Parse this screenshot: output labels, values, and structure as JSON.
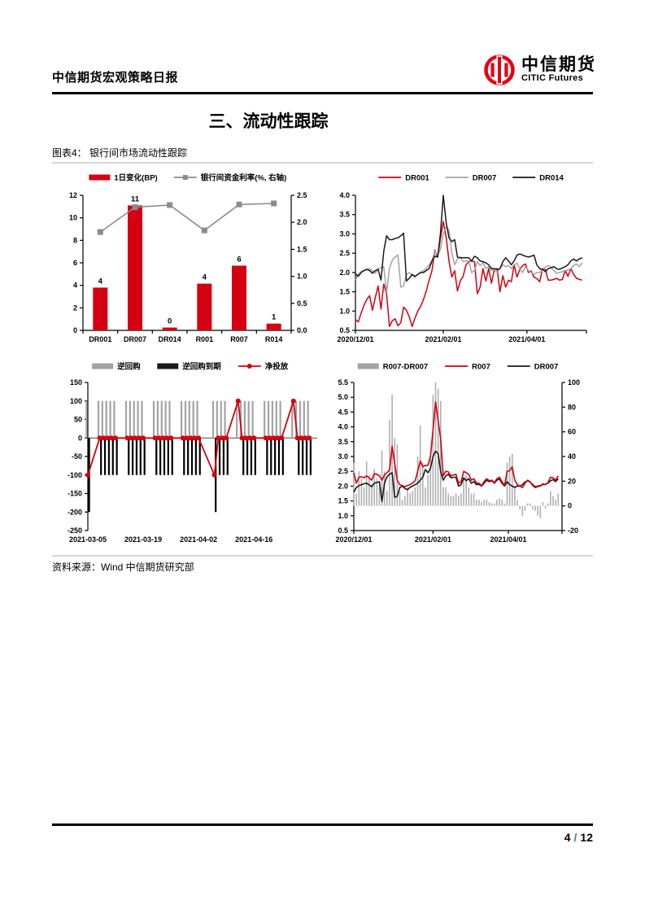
{
  "page": {
    "header_title": "中信期货宏观策略日报",
    "logo_cn": "中信期货",
    "logo_en": "CITIC Futures",
    "section_title": "三、流动性跟踪",
    "figure_caption": "图表4： 银行间市场流动性跟踪",
    "source": "资料来源：Wind 中信期货研究部",
    "page_number": "4",
    "page_separator": "/",
    "page_total": "12"
  },
  "colors": {
    "red": "#d40011",
    "gray": "#a3a3a3",
    "line_gray": "#8c8c8c",
    "bar_gray": "#b0b0b0",
    "black": "#1a1a1a",
    "rule_gray": "#d6d6d6",
    "slash_blue": "#4472c4",
    "logo_red": "#e60012",
    "zero_line": "#4d4d4d"
  },
  "chart_data": [
    {
      "id": "interbank-rate-daily-change",
      "type": "bar",
      "legend": [
        {
          "label": "1日变化(BP)",
          "swatch": "bar",
          "color": "red"
        },
        {
          "label": "银行间资金利率(%, 右轴)",
          "swatch": "line-square",
          "color": "line_gray"
        }
      ],
      "categories": [
        "DR001",
        "DR007",
        "DR014",
        "R001",
        "R007",
        "R014"
      ],
      "bars": {
        "name": "1日变化(BP)",
        "axis": "left",
        "values": [
          3.8,
          11.1,
          0.25,
          4.15,
          5.75,
          0.6
        ],
        "labels": [
          "4",
          "11",
          "0",
          "4",
          "6",
          "1"
        ]
      },
      "line": {
        "name": "银行间资金利率(%, 右轴)",
        "axis": "right",
        "color": "line_gray",
        "values": [
          1.82,
          2.28,
          2.32,
          1.85,
          2.33,
          2.35
        ]
      },
      "left_axis": {
        "min": 0,
        "max": 12,
        "step": 2,
        "decimals": 0
      },
      "right_axis": {
        "min": 0,
        "max": 2.5,
        "step": 0.5,
        "decimals": 1
      }
    },
    {
      "id": "dr-rates-history",
      "type": "line",
      "legend": [
        {
          "label": "DR001",
          "swatch": "line",
          "color": "red"
        },
        {
          "label": "DR007",
          "swatch": "line",
          "color": "gray"
        },
        {
          "label": "DR014",
          "swatch": "line",
          "color": "black"
        }
      ],
      "x": {
        "start": 0,
        "step": 2,
        "count": 81
      },
      "x_domain": [
        0,
        163
      ],
      "x_ticks": [
        {
          "pos": 0,
          "label": "2020/12/01"
        },
        {
          "pos": 62,
          "label": "2021/02/01"
        },
        {
          "pos": 121,
          "label": "2021/04/01"
        }
      ],
      "y_axis": {
        "min": 0.5,
        "max": 4.0,
        "step": 0.5,
        "decimals": 1
      },
      "series": [
        {
          "name": "DR001",
          "color": "red",
          "values": [
            0.78,
            0.72,
            0.95,
            1.15,
            1.3,
            1.4,
            1.02,
            1.35,
            1.65,
            1.05,
            1.7,
            1.45,
            0.6,
            0.75,
            0.8,
            0.62,
            0.7,
            1.1,
            1.02,
            0.85,
            0.6,
            0.82,
            1.0,
            1.12,
            1.3,
            1.52,
            1.8,
            2.05,
            2.58,
            2.4,
            2.88,
            3.32,
            2.92,
            2.3,
            1.88,
            2.05,
            1.52,
            1.78,
            1.9,
            2.2,
            2.28,
            2.3,
            2.28,
            1.45,
            1.62,
            2.1,
            1.78,
            2.1,
            1.72,
            2.08,
            2.1,
            1.5,
            1.92,
            1.62,
            1.8,
            1.76,
            2.2,
            1.88,
            2.08,
            2.18,
            2.22,
            2.0,
            2.04,
            1.88,
            1.84,
            1.76,
            2.1,
            2.08,
            1.8,
            1.8,
            1.82,
            1.85,
            1.8,
            1.82,
            2.05,
            1.9,
            2.1,
            1.95,
            1.85,
            1.82,
            1.8
          ]
        },
        {
          "name": "DR007",
          "color": "gray",
          "values": [
            1.8,
            1.95,
            2.02,
            2.05,
            2.08,
            2.1,
            2.04,
            1.98,
            2.1,
            2.12,
            2.15,
            1.48,
            2.1,
            2.32,
            2.4,
            2.45,
            1.62,
            1.66,
            1.95,
            2.0,
            1.92,
            1.88,
            1.96,
            2.0,
            2.05,
            2.1,
            2.2,
            2.3,
            2.56,
            2.45,
            2.6,
            3.0,
            3.18,
            3.1,
            2.5,
            2.2,
            2.35,
            2.4,
            2.28,
            2.3,
            2.3,
            2.0,
            2.05,
            2.28,
            2.18,
            2.25,
            2.1,
            2.15,
            2.05,
            2.06,
            2.0,
            2.1,
            2.2,
            2.15,
            2.18,
            2.1,
            2.2,
            2.24,
            2.1,
            2.0,
            2.15,
            2.05,
            2.0,
            1.96,
            2.0,
            2.0,
            2.05,
            2.14,
            2.18,
            2.14,
            2.05,
            1.98,
            2.0,
            2.02,
            2.05,
            2.06,
            2.1,
            2.18,
            2.22,
            2.15,
            2.25
          ]
        },
        {
          "name": "DR014",
          "color": "black",
          "values": [
            1.97,
            1.9,
            2.0,
            2.05,
            2.08,
            2.05,
            1.98,
            2.05,
            2.08,
            1.8,
            2.55,
            2.95,
            2.85,
            2.85,
            2.88,
            2.9,
            2.95,
            3.02,
            1.78,
            1.85,
            1.95,
            1.9,
            1.95,
            2.0,
            2.0,
            2.05,
            2.1,
            2.3,
            2.42,
            2.4,
            3.0,
            4.0,
            3.3,
            2.9,
            2.8,
            2.85,
            2.4,
            2.38,
            2.38,
            2.38,
            2.38,
            2.3,
            2.42,
            2.38,
            2.3,
            2.28,
            2.25,
            2.2,
            2.1,
            2.1,
            2.08,
            2.1,
            2.28,
            2.38,
            2.3,
            2.2,
            2.3,
            2.45,
            2.48,
            2.45,
            2.42,
            2.4,
            2.42,
            2.45,
            2.2,
            2.1,
            2.08,
            2.02,
            2.1,
            2.12,
            2.15,
            2.1,
            2.08,
            2.12,
            2.15,
            2.2,
            2.3,
            2.35,
            2.3,
            2.35,
            2.38
          ]
        }
      ]
    },
    {
      "id": "open-market-operations",
      "type": "bar-daily",
      "legend": [
        {
          "label": "逆回购",
          "swatch": "bar",
          "color": "gray"
        },
        {
          "label": "逆回购到期",
          "swatch": "bar",
          "color": "black"
        },
        {
          "label": "净投放",
          "swatch": "line-dot",
          "color": "red"
        }
      ],
      "y_axis": {
        "min": -250,
        "max": 150,
        "step": 50,
        "decimals": 0
      },
      "x_domain": [
        0,
        58
      ],
      "x_ticks": [
        {
          "pos": 0,
          "label": "2021-03-05"
        },
        {
          "pos": 14,
          "label": "2021-03-19"
        },
        {
          "pos": 28,
          "label": "2021-04-02"
        },
        {
          "pos": 42,
          "label": "2021-04-16"
        }
      ],
      "days": [
        0,
        3,
        4,
        5,
        6,
        7,
        10,
        11,
        12,
        13,
        14,
        17,
        18,
        19,
        20,
        21,
        24,
        25,
        26,
        27,
        28,
        32,
        33,
        34,
        35,
        38,
        39,
        40,
        41,
        42,
        45,
        46,
        47,
        48,
        49,
        52,
        53,
        54,
        55,
        56
      ],
      "reverse_repo": [
        100,
        100,
        100,
        100,
        100,
        100,
        100,
        100,
        100,
        100,
        100,
        100,
        100,
        100,
        100,
        100,
        100,
        100,
        100,
        100,
        100,
        100,
        100,
        100,
        100,
        100,
        100,
        100,
        100,
        100,
        100,
        100,
        100,
        100,
        100,
        100,
        100,
        100,
        100,
        100
      ],
      "repo_maturity": [
        -200,
        -100,
        -100,
        -100,
        -100,
        -100,
        -100,
        -100,
        -100,
        -100,
        -100,
        -100,
        -100,
        -100,
        -100,
        -100,
        -100,
        -100,
        -100,
        -100,
        -100,
        -200,
        -100,
        -100,
        -100,
        0,
        -100,
        -100,
        -100,
        -100,
        -100,
        -100,
        -100,
        -100,
        -100,
        0,
        -100,
        -100,
        -100,
        -100
      ],
      "net_injection": [
        -100,
        0,
        0,
        0,
        0,
        0,
        0,
        0,
        0,
        0,
        0,
        0,
        0,
        0,
        0,
        0,
        0,
        0,
        0,
        0,
        0,
        -100,
        0,
        0,
        0,
        100,
        0,
        0,
        0,
        0,
        0,
        0,
        0,
        0,
        0,
        100,
        0,
        0,
        0,
        0
      ]
    },
    {
      "id": "r007-dr007-spread",
      "type": "line-bar",
      "legend": [
        {
          "label": "R007-DR007",
          "swatch": "bar",
          "color": "gray"
        },
        {
          "label": "R007",
          "swatch": "line",
          "color": "red"
        },
        {
          "label": "DR007",
          "swatch": "line",
          "color": "black"
        }
      ],
      "x": {
        "start": 0,
        "step": 2,
        "count": 81
      },
      "x_domain": [
        0,
        163
      ],
      "x_ticks": [
        {
          "pos": 0,
          "label": "2020/12/01"
        },
        {
          "pos": 62,
          "label": "2021/02/01"
        },
        {
          "pos": 121,
          "label": "2021/04/01"
        }
      ],
      "left_axis": {
        "min": 0.5,
        "max": 5.5,
        "step": 0.5,
        "decimals": 1
      },
      "right_axis": {
        "min": -20,
        "max": 100,
        "step": 20,
        "decimals": 0
      },
      "bars": {
        "name": "R007-DR007",
        "axis": "right",
        "color": "bar_gray",
        "values": [
          35,
          10,
          28,
          22,
          15,
          36,
          25,
          18,
          30,
          22,
          15,
          45,
          28,
          12,
          70,
          90,
          55,
          50,
          12,
          5,
          8,
          15,
          10,
          12,
          15,
          40,
          65,
          35,
          15,
          25,
          40,
          90,
          100,
          95,
          85,
          15,
          15,
          10,
          8,
          8,
          10,
          8,
          10,
          22,
          25,
          15,
          10,
          10,
          5,
          5,
          3,
          5,
          5,
          3,
          2,
          2,
          5,
          6,
          5,
          2,
          35,
          40,
          42,
          15,
          5,
          -3,
          -8,
          -4,
          2,
          2,
          -3,
          -4,
          -8,
          -10,
          3,
          -2,
          2,
          12,
          8,
          5,
          10
        ]
      },
      "series": [
        {
          "name": "DR007",
          "color": "black",
          "axis": "left",
          "values": [
            1.8,
            1.95,
            2.02,
            2.05,
            2.08,
            2.1,
            2.04,
            1.98,
            2.1,
            2.12,
            2.15,
            1.48,
            2.1,
            2.32,
            2.4,
            2.45,
            1.62,
            1.66,
            1.95,
            2.0,
            1.92,
            1.88,
            1.96,
            2.0,
            2.05,
            2.1,
            2.2,
            2.3,
            2.56,
            2.45,
            2.6,
            3.0,
            3.18,
            3.1,
            2.5,
            2.2,
            2.35,
            2.4,
            2.28,
            2.3,
            2.3,
            2.0,
            2.05,
            2.28,
            2.18,
            2.25,
            2.1,
            2.15,
            2.05,
            2.06,
            2.0,
            2.1,
            2.2,
            2.15,
            2.18,
            2.1,
            2.2,
            2.24,
            2.1,
            2.0,
            2.15,
            2.05,
            2.0,
            1.96,
            2.0,
            2.0,
            2.05,
            2.14,
            2.18,
            2.14,
            2.05,
            1.98,
            2.0,
            2.02,
            2.05,
            2.06,
            2.1,
            2.18,
            2.22,
            2.15,
            2.25
          ]
        },
        {
          "name": "R007",
          "color": "red",
          "axis": "left",
          "values": [
            2.45,
            2.1,
            2.3,
            2.32,
            2.28,
            2.35,
            2.28,
            2.2,
            2.42,
            2.4,
            2.35,
            2.2,
            2.38,
            2.45,
            2.55,
            3.35,
            2.75,
            2.2,
            2.05,
            2.02,
            1.98,
            2.02,
            2.05,
            2.1,
            2.18,
            2.5,
            2.85,
            2.65,
            2.7,
            2.7,
            3.0,
            3.9,
            4.85,
            4.2,
            3.6,
            2.35,
            2.5,
            2.48,
            2.35,
            2.38,
            2.4,
            2.1,
            2.15,
            2.5,
            2.45,
            2.4,
            2.2,
            2.25,
            2.1,
            2.1,
            2.02,
            2.15,
            2.25,
            2.18,
            2.2,
            2.12,
            2.25,
            2.3,
            2.15,
            2.02,
            2.5,
            2.52,
            2.65,
            2.2,
            2.05,
            2.0,
            1.95,
            2.1,
            2.2,
            2.15,
            2.02,
            1.95,
            1.98,
            2.0,
            2.08,
            2.05,
            2.12,
            2.3,
            2.28,
            2.2,
            2.35
          ]
        }
      ]
    }
  ]
}
